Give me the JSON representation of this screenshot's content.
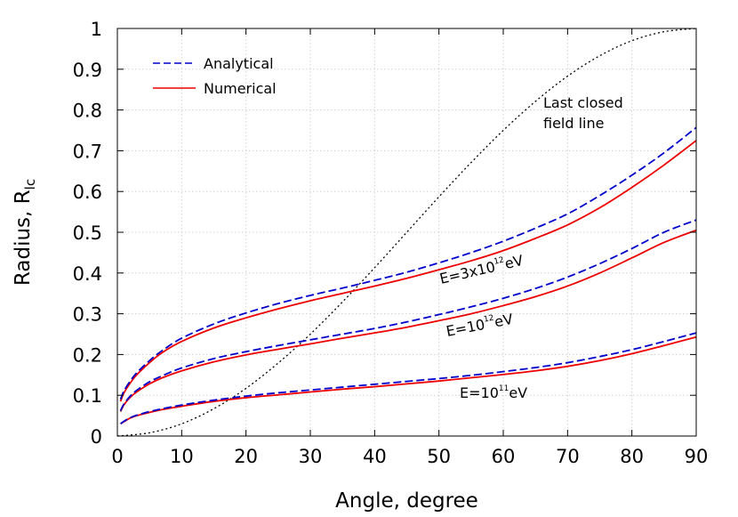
{
  "chart_data": {
    "type": "line",
    "xlabel": "Angle, degree",
    "ylabel_main": "Radius, R",
    "ylabel_sub": "lc",
    "xlim": [
      0,
      90
    ],
    "ylim": [
      0,
      1
    ],
    "xticks": [
      0,
      10,
      20,
      30,
      40,
      50,
      60,
      70,
      80,
      90
    ],
    "yticks": [
      "0",
      "0.1",
      "0.2",
      "0.3",
      "0.4",
      "0.5",
      "0.6",
      "0.7",
      "0.8",
      "0.9",
      "1"
    ],
    "grid": true,
    "legend_position": "top-left",
    "legend": [
      {
        "label": "Analytical",
        "color": "#0000cc",
        "dash": "dashed"
      },
      {
        "label": "Numerical",
        "color": "#ee0000",
        "dash": "solid"
      }
    ],
    "x": [
      0.5,
      1,
      2,
      3,
      5,
      7,
      10,
      15,
      20,
      25,
      30,
      35,
      40,
      45,
      50,
      55,
      60,
      65,
      70,
      75,
      80,
      85,
      90
    ],
    "series": [
      {
        "group": "E3e12",
        "method": "analytical",
        "color": "#0000cc",
        "values": [
          0.09,
          0.11,
          0.135,
          0.155,
          0.185,
          0.21,
          0.24,
          0.275,
          0.302,
          0.325,
          0.345,
          0.363,
          0.382,
          0.402,
          0.425,
          0.45,
          0.478,
          0.51,
          0.545,
          0.59,
          0.64,
          0.695,
          0.757
        ]
      },
      {
        "group": "E3e12",
        "method": "numerical",
        "color": "#ee0000",
        "values": [
          0.085,
          0.105,
          0.13,
          0.15,
          0.18,
          0.205,
          0.232,
          0.265,
          0.29,
          0.312,
          0.332,
          0.35,
          0.368,
          0.387,
          0.408,
          0.43,
          0.455,
          0.485,
          0.518,
          0.56,
          0.61,
          0.665,
          0.725
        ]
      },
      {
        "group": "E1e12",
        "method": "analytical",
        "color": "#0000cc",
        "values": [
          0.062,
          0.078,
          0.098,
          0.112,
          0.133,
          0.148,
          0.167,
          0.19,
          0.207,
          0.222,
          0.236,
          0.25,
          0.264,
          0.28,
          0.298,
          0.317,
          0.338,
          0.362,
          0.39,
          0.423,
          0.46,
          0.5,
          0.53
        ]
      },
      {
        "group": "E1e12",
        "method": "numerical",
        "color": "#ee0000",
        "values": [
          0.06,
          0.076,
          0.095,
          0.108,
          0.128,
          0.143,
          0.16,
          0.182,
          0.199,
          0.213,
          0.226,
          0.24,
          0.253,
          0.267,
          0.283,
          0.3,
          0.32,
          0.342,
          0.368,
          0.4,
          0.437,
          0.475,
          0.505
        ]
      },
      {
        "group": "E1e11",
        "method": "analytical",
        "color": "#0000cc",
        "values": [
          0.03,
          0.036,
          0.045,
          0.051,
          0.06,
          0.067,
          0.076,
          0.088,
          0.098,
          0.106,
          0.113,
          0.12,
          0.127,
          0.134,
          0.141,
          0.149,
          0.158,
          0.168,
          0.18,
          0.195,
          0.212,
          0.232,
          0.253
        ]
      },
      {
        "group": "E1e11",
        "method": "numerical",
        "color": "#ee0000",
        "values": [
          0.03,
          0.035,
          0.044,
          0.05,
          0.058,
          0.065,
          0.073,
          0.085,
          0.094,
          0.101,
          0.108,
          0.115,
          0.121,
          0.128,
          0.135,
          0.143,
          0.151,
          0.16,
          0.171,
          0.185,
          0.202,
          0.222,
          0.243
        ]
      }
    ],
    "last_closed_field_line": {
      "color": "#000000",
      "x": [
        0,
        5,
        10,
        15,
        20,
        25,
        30,
        35,
        40,
        45,
        50,
        55,
        60,
        65,
        70,
        75,
        80,
        85,
        90
      ],
      "y": [
        0,
        0.008,
        0.03,
        0.067,
        0.117,
        0.179,
        0.25,
        0.329,
        0.413,
        0.5,
        0.587,
        0.671,
        0.75,
        0.821,
        0.883,
        0.933,
        0.97,
        0.992,
        1.0
      ]
    },
    "annotations": [
      {
        "id": "lcfl",
        "lines": [
          "Last closed",
          "field line"
        ]
      },
      {
        "id": "E3e12",
        "prefix": "E=3x10",
        "exp": "12",
        "suffix": "eV"
      },
      {
        "id": "E1e12",
        "prefix": "E=10",
        "exp": "12",
        "suffix": "eV"
      },
      {
        "id": "E1e11",
        "prefix": "E=10",
        "exp": "11",
        "suffix": "eV"
      }
    ]
  }
}
